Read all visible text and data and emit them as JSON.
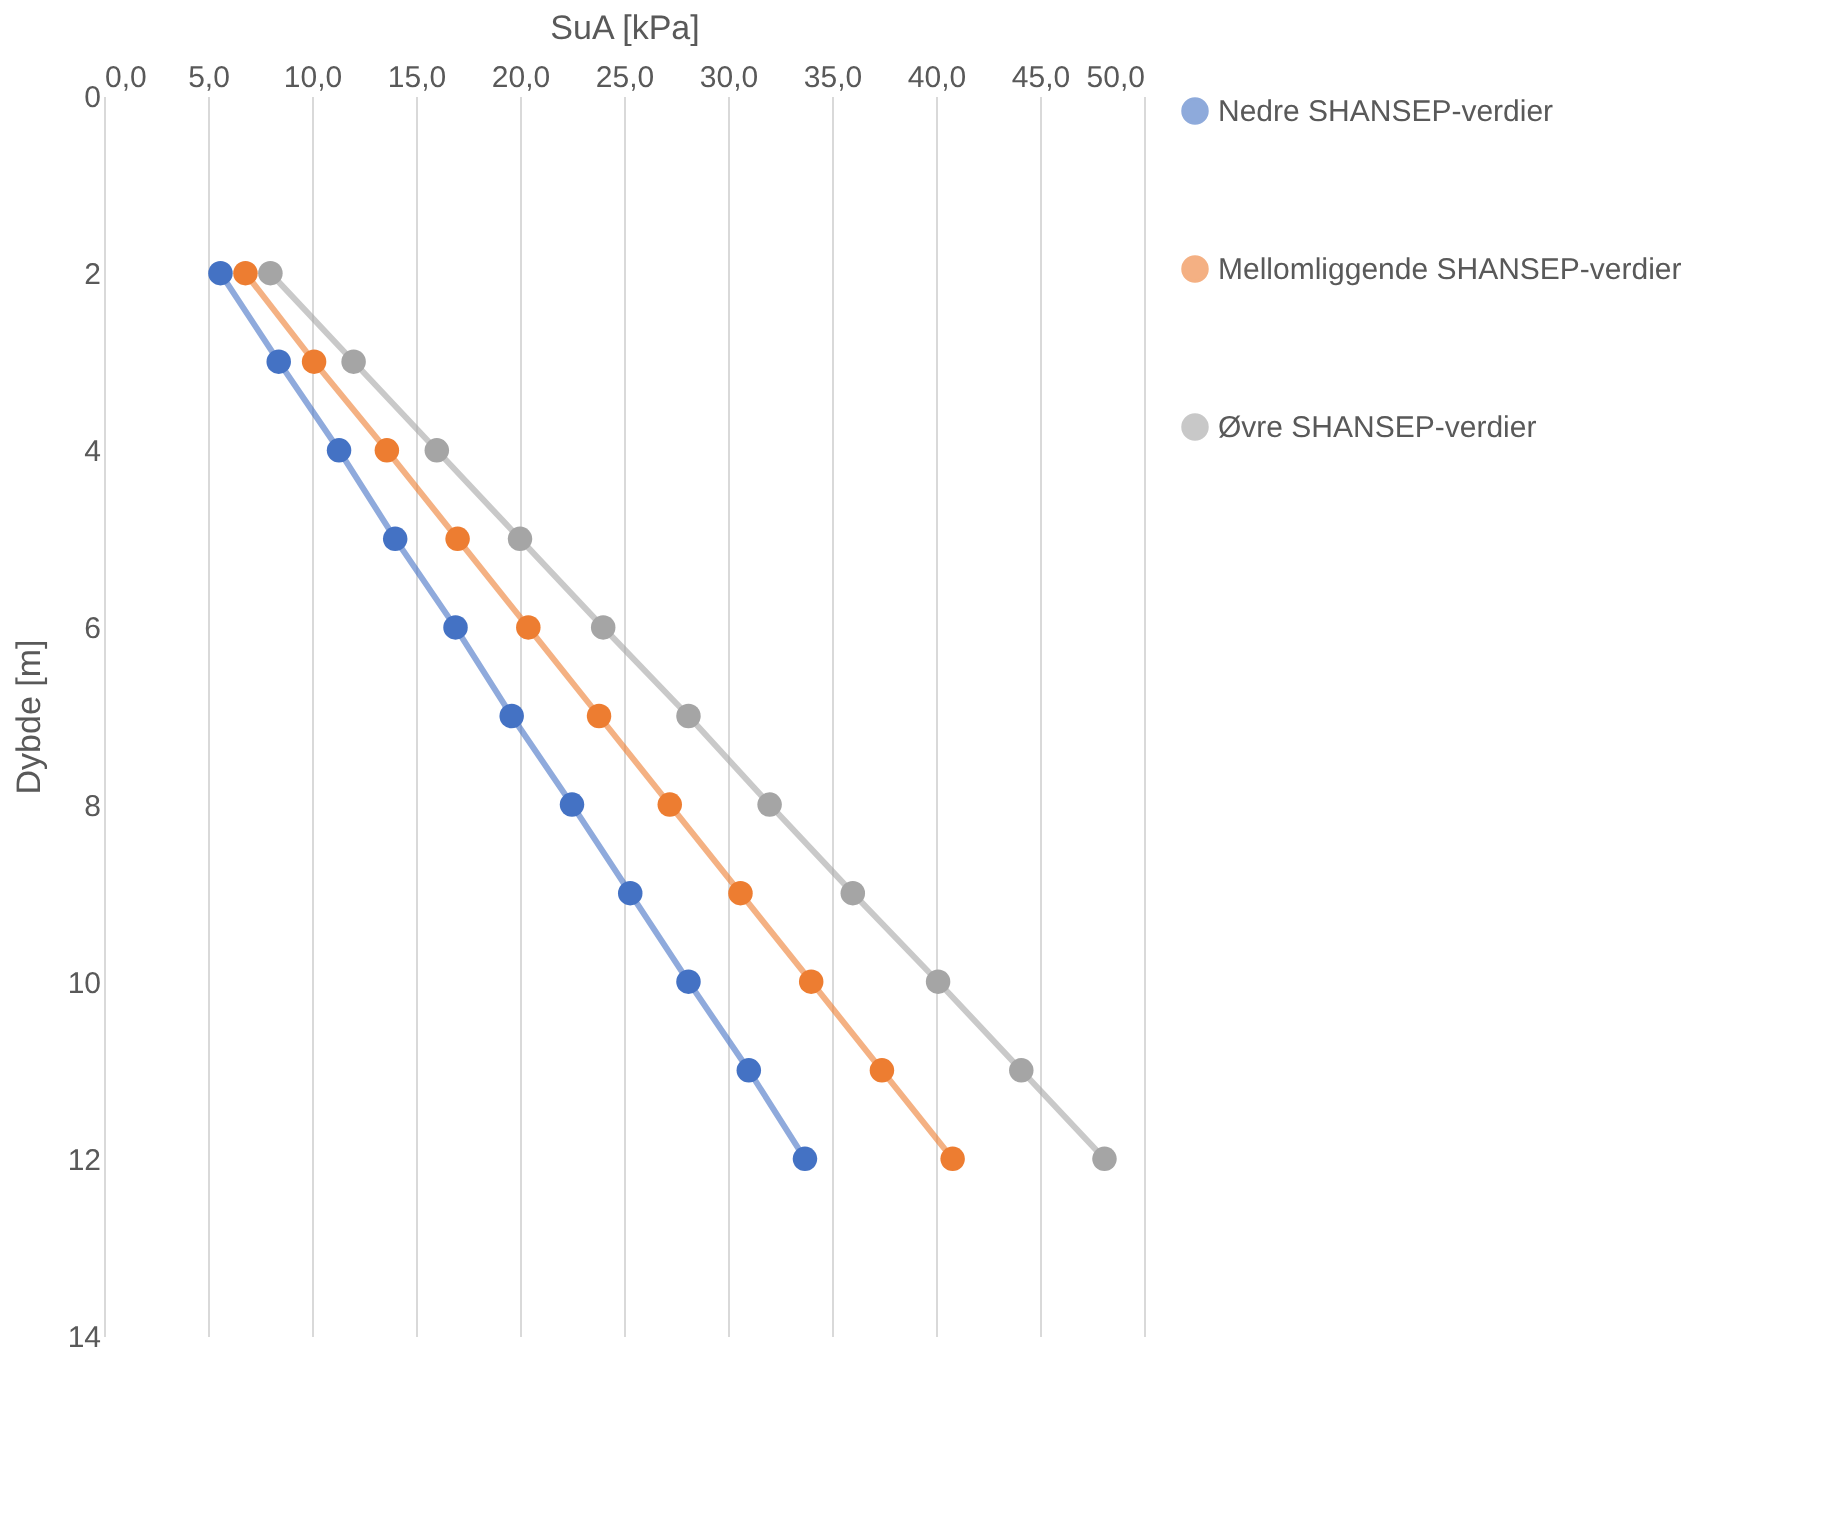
{
  "chart_data": {
    "type": "line",
    "xlabel": "SuA [kPa]",
    "ylabel": "Dybde [m]",
    "xlim": [
      0,
      50
    ],
    "xticks": [
      {
        "value": 0,
        "label": "0,0"
      },
      {
        "value": 5,
        "label": "5,0"
      },
      {
        "value": 10,
        "label": "10,0"
      },
      {
        "value": 15,
        "label": "15,0"
      },
      {
        "value": 20,
        "label": "20,0"
      },
      {
        "value": 25,
        "label": "25,0"
      },
      {
        "value": 30,
        "label": "30,0"
      },
      {
        "value": 35,
        "label": "35,0"
      },
      {
        "value": 40,
        "label": "40,0"
      },
      {
        "value": 45,
        "label": "45,0"
      },
      {
        "value": 50,
        "label": "50,0"
      }
    ],
    "ylim": [
      14,
      0
    ],
    "yticks": [
      0,
      2,
      4,
      6,
      8,
      10,
      12,
      14
    ],
    "grid": "x",
    "legend": "right",
    "marker": "circle",
    "line_style": "solid",
    "series": [
      {
        "name": "Nedre SHANSEP-verdier",
        "color": "#4472c4",
        "x": [
          5.6,
          8.4,
          11.3,
          14.0,
          16.9,
          19.6,
          22.5,
          25.3,
          28.1,
          31.0,
          33.7
        ],
        "values": [
          2,
          3,
          4,
          5,
          6,
          7,
          8,
          9,
          10,
          11,
          12
        ]
      },
      {
        "name": "Mellomliggende SHANSEP-verdier",
        "color": "#ed7d31",
        "x": [
          6.8,
          10.1,
          13.6,
          17.0,
          20.4,
          23.8,
          27.2,
          30.6,
          34.0,
          37.4,
          40.8
        ],
        "values": [
          2,
          3,
          4,
          5,
          6,
          7,
          8,
          9,
          10,
          11,
          12
        ]
      },
      {
        "name": "Øvre SHANSEP-verdier",
        "color": "#a5a5a5",
        "x": [
          8.0,
          12.0,
          16.0,
          20.0,
          24.0,
          28.1,
          32.0,
          36.0,
          40.1,
          44.1,
          48.1
        ],
        "values": [
          2,
          3,
          4,
          5,
          6,
          7,
          8,
          9,
          10,
          11,
          12
        ]
      }
    ]
  }
}
